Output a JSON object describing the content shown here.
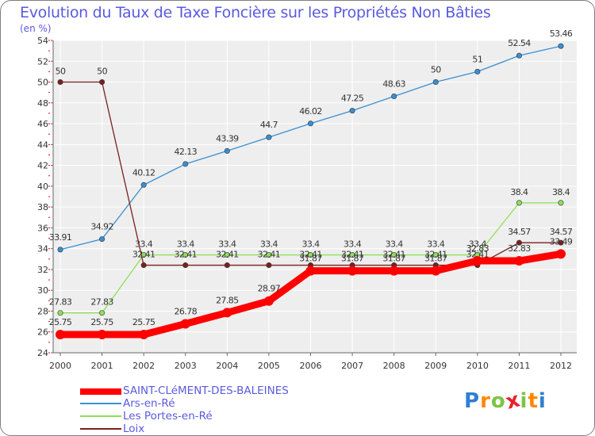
{
  "chart_data": {
    "type": "line",
    "title": "Evolution du Taux de Taxe Foncière sur les Propriétés Non Bâties",
    "ylabel": "(en %)",
    "xlabel": "",
    "ylim": [
      24,
      54
    ],
    "yticks": [
      24,
      26,
      28,
      30,
      32,
      34,
      36,
      38,
      40,
      42,
      44,
      46,
      48,
      50,
      52,
      54
    ],
    "categories": [
      "2000",
      "2001",
      "2002",
      "2003",
      "2004",
      "2005",
      "2006",
      "2007",
      "2008",
      "2009",
      "2010",
      "2011",
      "2012"
    ],
    "series": [
      {
        "name": "SAINT-CLéMENT-DES-BALEINES",
        "color": "#ff0000",
        "values": [
          25.75,
          25.75,
          25.75,
          26.78,
          27.85,
          28.97,
          31.87,
          31.87,
          31.87,
          31.87,
          32.83,
          32.83,
          33.49
        ],
        "labels": [
          "25.75",
          "25.75",
          "25.75",
          "26.78",
          "27.85",
          "28.97",
          "31.87",
          "31.87",
          "31.87",
          "31.87",
          "32.83",
          "32.83",
          "33.49"
        ]
      },
      {
        "name": "Ars-en-Ré",
        "color": "#3a8fd1",
        "values": [
          33.91,
          34.92,
          40.12,
          42.13,
          43.39,
          44.7,
          46.02,
          47.25,
          48.63,
          50,
          51,
          52.54,
          53.46
        ],
        "labels": [
          "33.91",
          "34.92",
          "40.12",
          "42.13",
          "43.39",
          "44.7",
          "46.02",
          "47.25",
          "48.63",
          "50",
          "51",
          "52.54",
          "53.46"
        ]
      },
      {
        "name": "Les Portes-en-Ré",
        "color": "#8ee05a",
        "values": [
          27.83,
          27.83,
          33.4,
          33.4,
          33.4,
          33.4,
          33.4,
          33.4,
          33.4,
          33.4,
          33.4,
          38.4,
          38.4
        ],
        "labels": [
          "27.83",
          "27.83",
          "33.4",
          "33.4",
          "33.4",
          "33.4",
          "33.4",
          "33.4",
          "33.4",
          "33.4",
          "33.4",
          "38.4",
          "38.4"
        ]
      },
      {
        "name": "Loix",
        "color": "#7a2020",
        "values": [
          50,
          50,
          32.41,
          32.41,
          32.41,
          32.41,
          32.41,
          32.41,
          32.41,
          32.41,
          32.41,
          34.57,
          34.57
        ],
        "labels": [
          "50",
          "50",
          "32.41",
          "32.41",
          "32.41",
          "32.41",
          "32.41",
          "32.41",
          "32.41",
          "32.41",
          "32.41",
          "34.57",
          "34.57"
        ]
      }
    ],
    "legend": "bottom-left",
    "grid": true
  },
  "logo": {
    "letters": [
      "P",
      "r",
      "o",
      "x",
      "i",
      "t",
      "i"
    ],
    "colors": [
      "#2f7fd0",
      "#ff8800",
      "#7cc443",
      "#e8212a",
      "#7cc443",
      "#ff8800",
      "#2f7fd0"
    ]
  }
}
